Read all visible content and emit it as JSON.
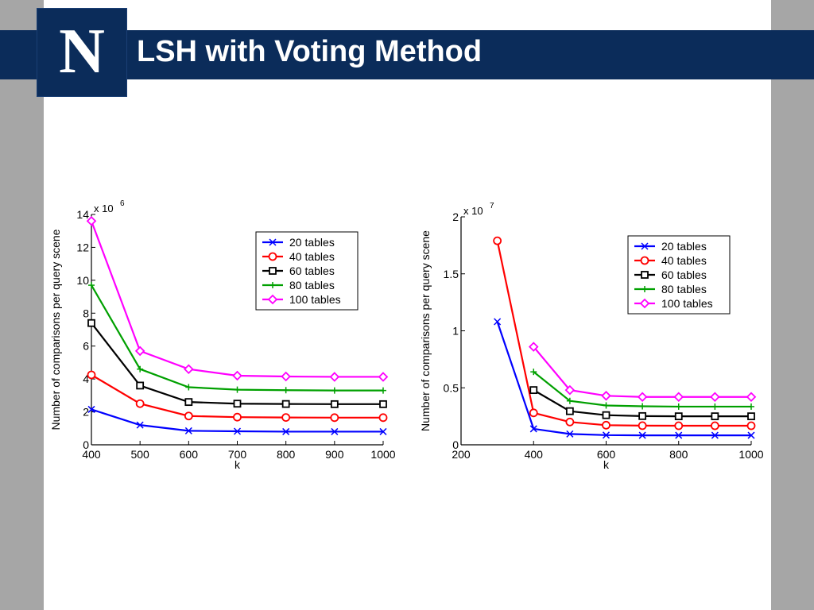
{
  "title": "LSH with Voting Method",
  "logo": {
    "letter": "N",
    "icon": "university-n-logo"
  },
  "colors": {
    "title_bar": "#0b2c5a",
    "background": "#a6a6a6",
    "slide": "#ffffff"
  },
  "chart_data": [
    {
      "type": "line",
      "x": [
        400,
        500,
        600,
        700,
        800,
        900,
        1000
      ],
      "xlabel": "k",
      "ylabel": "Number of comparisons per query scene",
      "xlim": [
        400,
        1000
      ],
      "ylim": [
        0,
        14
      ],
      "xticks": [
        "400",
        "500",
        "600",
        "700",
        "800",
        "900",
        "1000"
      ],
      "yticks": [
        "0",
        "2",
        "4",
        "6",
        "8",
        "10",
        "12",
        "14"
      ],
      "exponent_label": "x 10",
      "exponent": "6",
      "grid": false,
      "legend": "top-right",
      "series": [
        {
          "name": "20 tables",
          "color": "#0000ff",
          "marker": "x",
          "values": [
            2.15,
            1.2,
            0.85,
            0.82,
            0.8,
            0.8,
            0.8
          ]
        },
        {
          "name": "40 tables",
          "color": "#ff0000",
          "marker": "o",
          "values": [
            4.25,
            2.5,
            1.75,
            1.68,
            1.66,
            1.65,
            1.65
          ]
        },
        {
          "name": "60 tables",
          "color": "#000000",
          "marker": "s",
          "values": [
            7.4,
            3.6,
            2.6,
            2.5,
            2.48,
            2.47,
            2.47
          ]
        },
        {
          "name": "80 tables",
          "color": "#00a000",
          "marker": "+",
          "values": [
            9.7,
            4.6,
            3.5,
            3.35,
            3.32,
            3.3,
            3.3
          ]
        },
        {
          "name": "100 tables",
          "color": "#ff00ff",
          "marker": "d",
          "values": [
            13.6,
            5.7,
            4.6,
            4.2,
            4.15,
            4.13,
            4.13
          ]
        }
      ]
    },
    {
      "type": "line",
      "x": [
        300,
        400,
        500,
        600,
        700,
        800,
        900,
        1000
      ],
      "xlabel": "k",
      "ylabel": "Number of comparisons per query scene",
      "xlim": [
        200,
        1000
      ],
      "ylim": [
        0,
        2
      ],
      "xticks": [
        "200",
        "400",
        "600",
        "800",
        "1000"
      ],
      "yticks": [
        "0",
        "0.5",
        "1",
        "1.5",
        "2"
      ],
      "exponent_label": "x 10",
      "exponent": "7",
      "grid": false,
      "legend": "top-right",
      "series": [
        {
          "name": "20 tables",
          "color": "#0000ff",
          "marker": "x",
          "values": [
            1.08,
            0.14,
            0.095,
            0.085,
            0.083,
            0.083,
            0.083,
            0.083
          ]
        },
        {
          "name": "40 tables",
          "color": "#ff0000",
          "marker": "o",
          "values": [
            1.79,
            0.28,
            0.2,
            0.172,
            0.168,
            0.167,
            0.167,
            0.167
          ]
        },
        {
          "name": "60 tables",
          "color": "#000000",
          "marker": "s",
          "values": [
            null,
            0.48,
            0.295,
            0.26,
            0.252,
            0.25,
            0.25,
            0.25
          ]
        },
        {
          "name": "80 tables",
          "color": "#00a000",
          "marker": "+",
          "values": [
            null,
            0.64,
            0.385,
            0.345,
            0.338,
            0.335,
            0.335,
            0.335
          ]
        },
        {
          "name": "100 tables",
          "color": "#ff00ff",
          "marker": "d",
          "values": [
            null,
            0.86,
            0.48,
            0.43,
            0.42,
            0.42,
            0.42,
            0.42
          ]
        }
      ]
    }
  ]
}
